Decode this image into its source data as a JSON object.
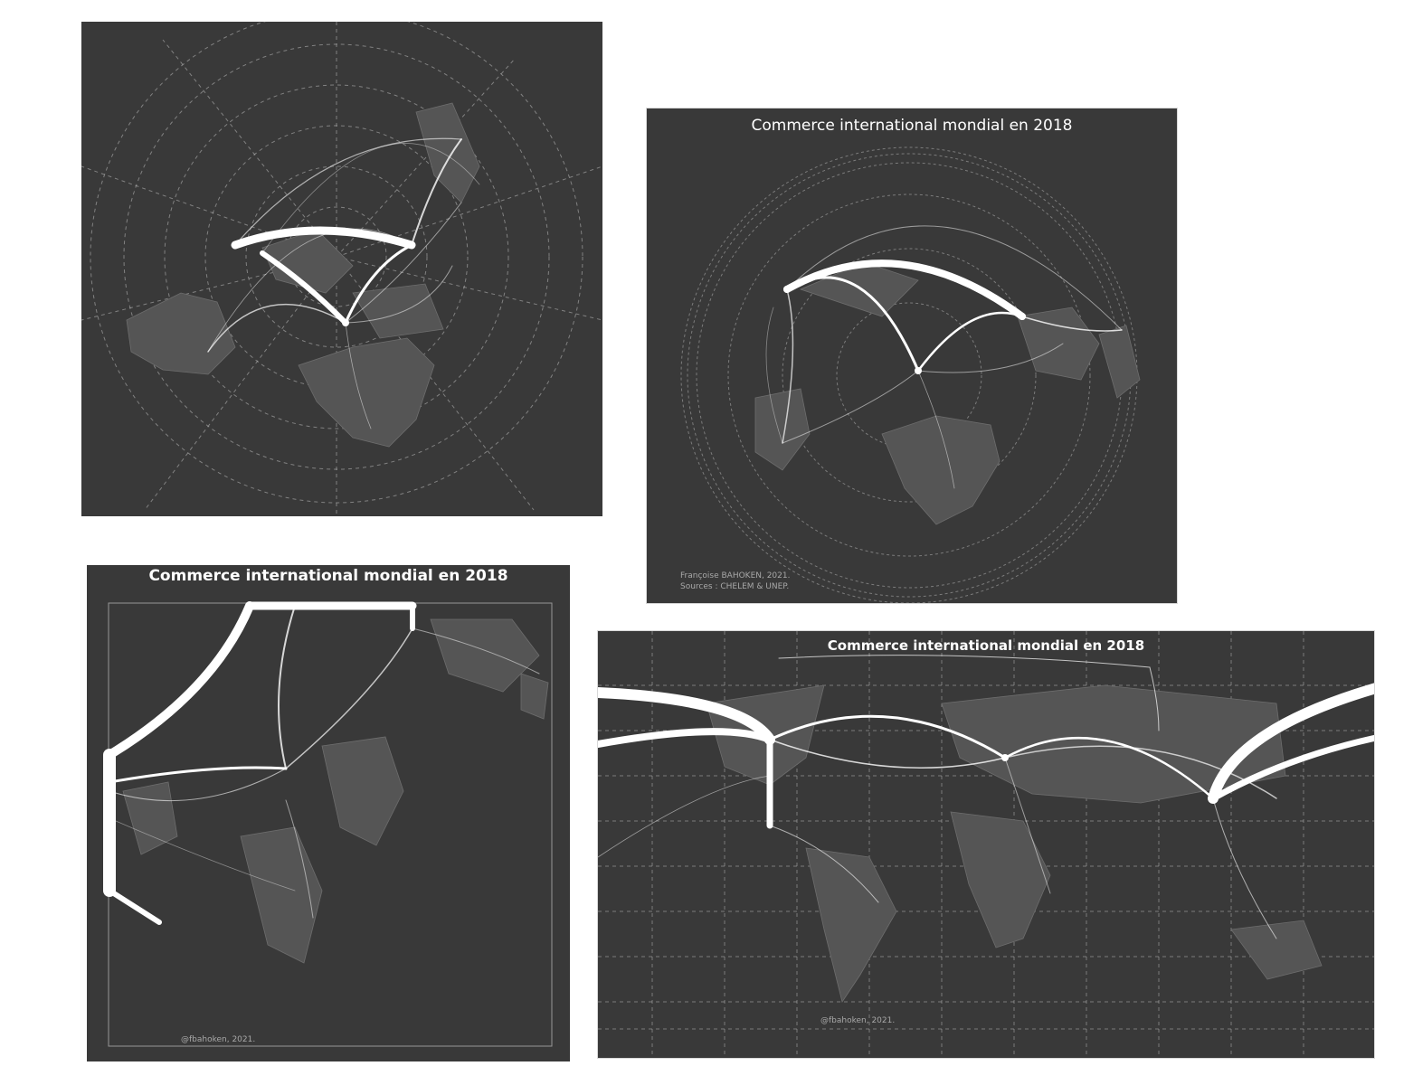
{
  "maps": [
    {
      "id": "azimuthal-untitled",
      "title": "",
      "credit_lines": []
    },
    {
      "id": "azimuthal-titled",
      "title": "Commerce international mondial en 2018",
      "credit_lines": [
        "Françoise BAHOKEN, 2021.",
        "Sources : CHELEM & UNEP."
      ]
    },
    {
      "id": "square-projection",
      "title": "Commerce international mondial en 2018",
      "credit_lines": [
        "@fbahoken, 2021."
      ]
    },
    {
      "id": "world-rectangular",
      "title": "Commerce international mondial en 2018",
      "credit_lines": [
        "@fbahoken, 2021."
      ]
    }
  ],
  "colors": {
    "background": "#393939",
    "land": "#555555",
    "flow": "#ffffff",
    "graticule": "#bdbdbd",
    "page": "#ffffff"
  }
}
